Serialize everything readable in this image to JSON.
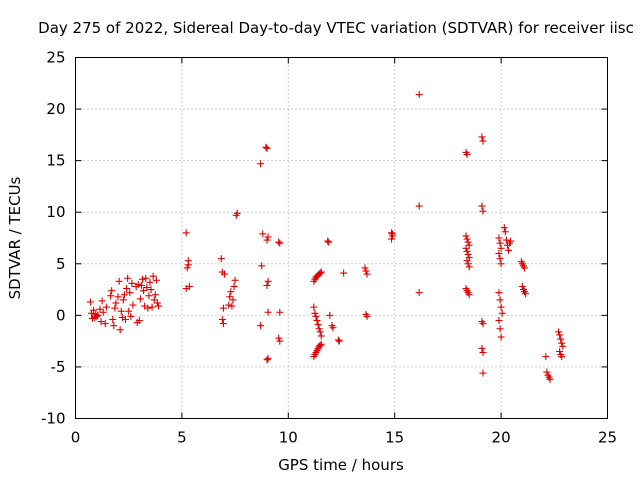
{
  "chart_data": {
    "type": "scatter",
    "title": "Day 275 of 2022, Sidereal Day-to-day VTEC variation (SDTVAR) for receiver iisc",
    "xlabel": "GPS time / hours",
    "ylabel": "SDTVAR / TECUs",
    "xlim": [
      0,
      25
    ],
    "ylim": [
      -10,
      25
    ],
    "xticks": [
      "0",
      "5",
      "10",
      "15",
      "20",
      "25"
    ],
    "yticks": [
      "-10",
      "-5",
      "0",
      "5",
      "10",
      "15",
      "20",
      "25"
    ],
    "grid": true,
    "marker": "+",
    "color": "#e00000",
    "series": [
      {
        "name": "SDTVAR",
        "points": [
          [
            0.7,
            1.3
          ],
          [
            0.75,
            0.2
          ],
          [
            0.8,
            -0.3
          ],
          [
            0.85,
            0.5
          ],
          [
            0.9,
            -0.2
          ],
          [
            0.95,
            0.1
          ],
          [
            1.0,
            -0.1
          ],
          [
            1.05,
            0.0
          ],
          [
            1.15,
            0.6
          ],
          [
            1.2,
            -0.6
          ],
          [
            1.25,
            1.4
          ],
          [
            1.3,
            0.3
          ],
          [
            1.4,
            -0.8
          ],
          [
            1.45,
            0.8
          ],
          [
            1.65,
            1.9
          ],
          [
            1.7,
            2.4
          ],
          [
            1.75,
            -0.4
          ],
          [
            1.8,
            -1.0
          ],
          [
            1.85,
            0.7
          ],
          [
            1.9,
            1.2
          ],
          [
            2.0,
            1.8
          ],
          [
            2.05,
            3.3
          ],
          [
            2.1,
            -1.4
          ],
          [
            2.15,
            0.4
          ],
          [
            2.2,
            -0.2
          ],
          [
            2.25,
            1.5
          ],
          [
            2.3,
            2.0
          ],
          [
            2.35,
            -0.4
          ],
          [
            2.4,
            2.6
          ],
          [
            2.45,
            3.6
          ],
          [
            2.5,
            0.4
          ],
          [
            2.55,
            2.2
          ],
          [
            2.6,
            -0.1
          ],
          [
            2.65,
            3.1
          ],
          [
            2.7,
            1.0
          ],
          [
            2.85,
            2.8
          ],
          [
            2.9,
            -0.7
          ],
          [
            2.95,
            3.0
          ],
          [
            3.0,
            -0.5
          ],
          [
            3.05,
            1.6
          ],
          [
            3.1,
            2.9
          ],
          [
            3.15,
            3.5
          ],
          [
            3.2,
            2.4
          ],
          [
            3.25,
            0.9
          ],
          [
            3.3,
            3.6
          ],
          [
            3.35,
            2.7
          ],
          [
            3.4,
            0.7
          ],
          [
            3.45,
            1.9
          ],
          [
            3.5,
            3.2
          ],
          [
            3.55,
            2.5
          ],
          [
            3.6,
            0.8
          ],
          [
            3.65,
            3.8
          ],
          [
            3.7,
            1.5
          ],
          [
            3.75,
            2.0
          ],
          [
            3.8,
            3.4
          ],
          [
            3.85,
            1.2
          ],
          [
            3.9,
            0.9
          ],
          [
            5.2,
            8.0
          ],
          [
            5.25,
            4.6
          ],
          [
            5.3,
            5.3
          ],
          [
            5.35,
            2.8
          ],
          [
            5.2,
            2.6
          ],
          [
            5.3,
            4.9
          ],
          [
            6.85,
            5.5
          ],
          [
            6.9,
            4.2
          ],
          [
            6.95,
            0.7
          ],
          [
            6.9,
            -0.4
          ],
          [
            6.95,
            -0.8
          ],
          [
            7.0,
            4.0
          ],
          [
            7.2,
            1.0
          ],
          [
            7.25,
            1.8
          ],
          [
            7.3,
            2.3
          ],
          [
            7.35,
            0.9
          ],
          [
            7.4,
            1.5
          ],
          [
            7.45,
            2.8
          ],
          [
            7.5,
            3.4
          ],
          [
            7.55,
            9.7
          ],
          [
            7.6,
            9.9
          ],
          [
            8.7,
            14.7
          ],
          [
            8.8,
            7.9
          ],
          [
            8.75,
            4.8
          ],
          [
            8.7,
            -1.0
          ],
          [
            8.95,
            16.3
          ],
          [
            9.0,
            16.2
          ],
          [
            9.05,
            7.6
          ],
          [
            9.0,
            7.3
          ],
          [
            9.05,
            3.3
          ],
          [
            9.0,
            2.9
          ],
          [
            9.05,
            0.3
          ],
          [
            9.0,
            -4.3
          ],
          [
            9.05,
            -4.2
          ],
          [
            9.55,
            7.1
          ],
          [
            9.6,
            7.0
          ],
          [
            9.6,
            0.3
          ],
          [
            9.55,
            -2.2
          ],
          [
            9.6,
            -2.5
          ],
          [
            11.2,
            0.8
          ],
          [
            11.25,
            0.2
          ],
          [
            11.3,
            -0.1
          ],
          [
            11.35,
            -0.5
          ],
          [
            11.4,
            -0.9
          ],
          [
            11.45,
            -1.3
          ],
          [
            11.5,
            -1.6
          ],
          [
            11.55,
            -2.0
          ],
          [
            11.2,
            -4.0
          ],
          [
            11.25,
            -3.8
          ],
          [
            11.3,
            -3.6
          ],
          [
            11.35,
            -3.4
          ],
          [
            11.4,
            -3.2
          ],
          [
            11.45,
            -3.0
          ],
          [
            11.5,
            -2.9
          ],
          [
            11.55,
            -2.8
          ],
          [
            11.2,
            3.3
          ],
          [
            11.25,
            3.5
          ],
          [
            11.3,
            3.7
          ],
          [
            11.35,
            3.8
          ],
          [
            11.4,
            3.9
          ],
          [
            11.45,
            4.0
          ],
          [
            11.5,
            4.1
          ],
          [
            11.55,
            4.2
          ],
          [
            11.85,
            7.2
          ],
          [
            11.9,
            7.1
          ],
          [
            11.95,
            0.0
          ],
          [
            12.05,
            -1.0
          ],
          [
            12.1,
            -1.2
          ],
          [
            12.35,
            -2.4
          ],
          [
            12.4,
            -2.5
          ],
          [
            12.6,
            4.1
          ],
          [
            13.6,
            4.6
          ],
          [
            13.65,
            4.3
          ],
          [
            13.7,
            4.0
          ],
          [
            13.65,
            0.1
          ],
          [
            13.7,
            -0.1
          ],
          [
            14.85,
            8.0
          ],
          [
            14.9,
            7.7
          ],
          [
            14.85,
            7.4
          ],
          [
            14.9,
            7.9
          ],
          [
            16.15,
            21.4
          ],
          [
            16.15,
            10.6
          ],
          [
            16.15,
            2.2
          ],
          [
            18.35,
            15.8
          ],
          [
            18.4,
            15.6
          ],
          [
            18.35,
            7.7
          ],
          [
            18.4,
            7.4
          ],
          [
            18.45,
            7.1
          ],
          [
            18.5,
            6.8
          ],
          [
            18.35,
            6.5
          ],
          [
            18.4,
            6.2
          ],
          [
            18.45,
            5.9
          ],
          [
            18.5,
            5.6
          ],
          [
            18.4,
            5.3
          ],
          [
            18.45,
            5.0
          ],
          [
            18.5,
            4.7
          ],
          [
            18.35,
            2.6
          ],
          [
            18.4,
            2.4
          ],
          [
            18.45,
            2.2
          ],
          [
            18.5,
            2.0
          ],
          [
            19.1,
            17.3
          ],
          [
            19.15,
            16.9
          ],
          [
            19.1,
            10.6
          ],
          [
            19.15,
            10.1
          ],
          [
            19.1,
            -0.6
          ],
          [
            19.15,
            -0.8
          ],
          [
            19.1,
            -3.2
          ],
          [
            19.15,
            -3.6
          ],
          [
            19.15,
            -5.6
          ],
          [
            19.9,
            7.5
          ],
          [
            19.95,
            7.0
          ],
          [
            20.0,
            6.5
          ],
          [
            19.9,
            6.0
          ],
          [
            19.95,
            5.5
          ],
          [
            20.0,
            5.0
          ],
          [
            19.9,
            2.2
          ],
          [
            19.95,
            1.5
          ],
          [
            20.0,
            0.8
          ],
          [
            20.05,
            0.2
          ],
          [
            19.9,
            -0.5
          ],
          [
            19.95,
            -1.3
          ],
          [
            20.0,
            -2.1
          ],
          [
            20.15,
            8.5
          ],
          [
            20.2,
            8.1
          ],
          [
            20.25,
            7.3
          ],
          [
            20.3,
            6.8
          ],
          [
            20.35,
            6.3
          ],
          [
            20.4,
            7.0
          ],
          [
            20.45,
            7.2
          ],
          [
            20.95,
            5.2
          ],
          [
            21.0,
            5.0
          ],
          [
            21.05,
            4.8
          ],
          [
            21.1,
            4.6
          ],
          [
            21.0,
            2.8
          ],
          [
            21.05,
            2.5
          ],
          [
            21.1,
            2.3
          ],
          [
            21.15,
            2.1
          ],
          [
            22.1,
            -4.0
          ],
          [
            22.15,
            -5.5
          ],
          [
            22.2,
            -5.8
          ],
          [
            22.25,
            -6.0
          ],
          [
            22.3,
            -6.2
          ],
          [
            22.7,
            -1.6
          ],
          [
            22.75,
            -1.9
          ],
          [
            22.8,
            -2.3
          ],
          [
            22.85,
            -2.7
          ],
          [
            22.9,
            -3.0
          ],
          [
            22.75,
            -3.5
          ],
          [
            22.8,
            -3.8
          ],
          [
            22.85,
            -4.0
          ]
        ]
      }
    ]
  }
}
